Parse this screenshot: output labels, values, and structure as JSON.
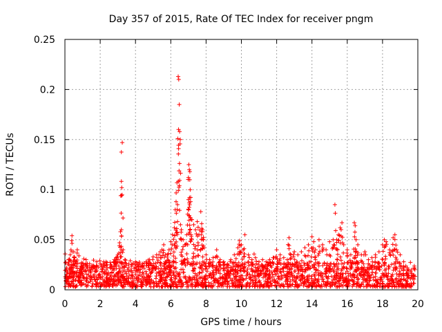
{
  "chart_data": {
    "type": "scatter",
    "title": "Day 357 of 2015, Rate Of TEC Index for receiver pngm",
    "xlabel": "GPS time / hours",
    "ylabel": "ROTI / TECUs",
    "xlim": [
      0,
      20
    ],
    "ylim": [
      0,
      0.25
    ],
    "x_ticks": [
      0,
      2,
      4,
      6,
      8,
      10,
      12,
      14,
      16,
      18,
      20
    ],
    "x_tick_labels": [
      "0",
      "2",
      "4",
      "6",
      "8",
      "10",
      "12",
      "14",
      "16",
      "18",
      "20"
    ],
    "y_ticks": [
      0,
      0.05,
      0.1,
      0.15,
      0.2,
      0.25
    ],
    "y_tick_labels": [
      "0",
      "0.05",
      "0.1",
      "0.15",
      "0.2",
      "0.25"
    ],
    "grid": true,
    "marker": "+",
    "marker_color": "#ff0000",
    "data_range": [
      0,
      19.8
    ],
    "background_band": {
      "min": 0.003,
      "typical": 0.013,
      "max_base": 0.028
    },
    "series": [
      {
        "name": "ROTI",
        "points": [
          [
            0.1,
            0.022
          ],
          [
            0.2,
            0.03
          ],
          [
            0.3,
            0.035
          ],
          [
            0.35,
            0.029
          ],
          [
            0.4,
            0.054
          ],
          [
            0.5,
            0.038
          ],
          [
            0.6,
            0.028
          ],
          [
            0.7,
            0.04
          ],
          [
            0.9,
            0.02
          ],
          [
            1.0,
            0.022
          ],
          [
            1.2,
            0.03
          ],
          [
            1.4,
            0.026
          ],
          [
            1.6,
            0.024
          ],
          [
            1.8,
            0.028
          ],
          [
            2.0,
            0.026
          ],
          [
            2.2,
            0.028
          ],
          [
            2.4,
            0.022
          ],
          [
            2.6,
            0.025
          ],
          [
            2.8,
            0.03
          ],
          [
            2.9,
            0.032
          ],
          [
            3.0,
            0.035
          ],
          [
            3.1,
            0.047
          ],
          [
            3.15,
            0.058
          ],
          [
            3.2,
            0.06
          ],
          [
            3.22,
            0.102
          ],
          [
            3.25,
            0.147
          ],
          [
            3.3,
            0.04
          ],
          [
            3.4,
            0.03
          ],
          [
            3.6,
            0.022
          ],
          [
            3.8,
            0.025
          ],
          [
            4.0,
            0.028
          ],
          [
            4.2,
            0.025
          ],
          [
            4.4,
            0.026
          ],
          [
            4.6,
            0.028
          ],
          [
            4.8,
            0.03
          ],
          [
            5.0,
            0.033
          ],
          [
            5.2,
            0.035
          ],
          [
            5.4,
            0.038
          ],
          [
            5.5,
            0.04
          ],
          [
            5.6,
            0.045
          ],
          [
            5.7,
            0.035
          ],
          [
            5.8,
            0.035
          ],
          [
            5.9,
            0.04
          ],
          [
            6.0,
            0.048
          ],
          [
            6.1,
            0.055
          ],
          [
            6.2,
            0.062
          ],
          [
            6.25,
            0.08
          ],
          [
            6.3,
            0.088
          ],
          [
            6.35,
            0.107
          ],
          [
            6.38,
            0.085
          ],
          [
            6.42,
            0.213
          ],
          [
            6.45,
            0.21
          ],
          [
            6.48,
            0.185
          ],
          [
            6.5,
            0.158
          ],
          [
            6.55,
            0.065
          ],
          [
            6.6,
            0.06
          ],
          [
            6.7,
            0.05
          ],
          [
            6.8,
            0.045
          ],
          [
            6.9,
            0.055
          ],
          [
            7.0,
            0.09
          ],
          [
            7.02,
            0.125
          ],
          [
            7.05,
            0.12
          ],
          [
            7.08,
            0.118
          ],
          [
            7.1,
            0.1
          ],
          [
            7.12,
            0.088
          ],
          [
            7.2,
            0.07
          ],
          [
            7.3,
            0.065
          ],
          [
            7.4,
            0.06
          ],
          [
            7.5,
            0.068
          ],
          [
            7.6,
            0.055
          ],
          [
            7.7,
            0.078
          ],
          [
            7.75,
            0.066
          ],
          [
            7.8,
            0.06
          ],
          [
            7.85,
            0.05
          ],
          [
            8.0,
            0.035
          ],
          [
            8.2,
            0.03
          ],
          [
            8.4,
            0.032
          ],
          [
            8.6,
            0.04
          ],
          [
            8.8,
            0.03
          ],
          [
            9.0,
            0.028
          ],
          [
            9.2,
            0.025
          ],
          [
            9.4,
            0.03
          ],
          [
            9.6,
            0.035
          ],
          [
            9.8,
            0.042
          ],
          [
            9.9,
            0.049
          ],
          [
            10.0,
            0.045
          ],
          [
            10.1,
            0.04
          ],
          [
            10.2,
            0.055
          ],
          [
            10.4,
            0.035
          ],
          [
            10.6,
            0.03
          ],
          [
            10.8,
            0.032
          ],
          [
            11.0,
            0.028
          ],
          [
            11.2,
            0.03
          ],
          [
            11.4,
            0.028
          ],
          [
            11.6,
            0.03
          ],
          [
            11.8,
            0.032
          ],
          [
            12.0,
            0.04
          ],
          [
            12.2,
            0.035
          ],
          [
            12.4,
            0.032
          ],
          [
            12.6,
            0.03
          ],
          [
            12.7,
            0.052
          ],
          [
            12.8,
            0.035
          ],
          [
            13.0,
            0.038
          ],
          [
            13.2,
            0.035
          ],
          [
            13.4,
            0.038
          ],
          [
            13.6,
            0.042
          ],
          [
            13.8,
            0.045
          ],
          [
            14.0,
            0.053
          ],
          [
            14.1,
            0.048
          ],
          [
            14.2,
            0.04
          ],
          [
            14.4,
            0.05
          ],
          [
            14.6,
            0.045
          ],
          [
            14.8,
            0.04
          ],
          [
            15.0,
            0.048
          ],
          [
            15.2,
            0.05
          ],
          [
            15.3,
            0.085
          ],
          [
            15.4,
            0.05
          ],
          [
            15.5,
            0.055
          ],
          [
            15.6,
            0.062
          ],
          [
            15.7,
            0.067
          ],
          [
            15.8,
            0.045
          ],
          [
            16.0,
            0.04
          ],
          [
            16.2,
            0.035
          ],
          [
            16.4,
            0.067
          ],
          [
            16.45,
            0.064
          ],
          [
            16.5,
            0.05
          ],
          [
            16.6,
            0.045
          ],
          [
            16.8,
            0.035
          ],
          [
            17.0,
            0.038
          ],
          [
            17.2,
            0.03
          ],
          [
            17.4,
            0.032
          ],
          [
            17.6,
            0.035
          ],
          [
            17.8,
            0.038
          ],
          [
            18.0,
            0.045
          ],
          [
            18.1,
            0.05
          ],
          [
            18.2,
            0.048
          ],
          [
            18.4,
            0.04
          ],
          [
            18.6,
            0.052
          ],
          [
            18.7,
            0.055
          ],
          [
            18.8,
            0.04
          ],
          [
            19.0,
            0.035
          ],
          [
            19.2,
            0.028
          ],
          [
            19.4,
            0.022
          ],
          [
            19.6,
            0.018
          ],
          [
            19.8,
            0.022
          ]
        ]
      }
    ]
  }
}
